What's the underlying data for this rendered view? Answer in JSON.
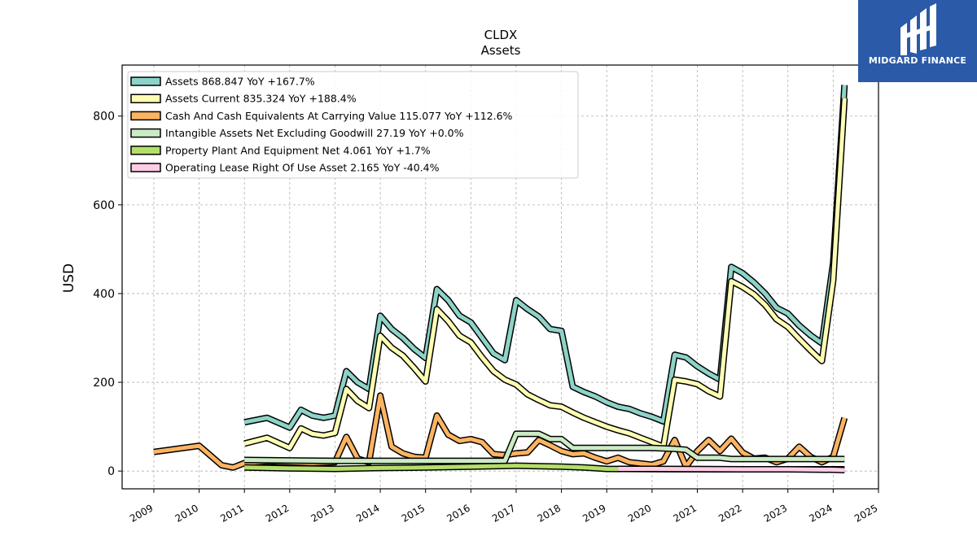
{
  "chart_data": {
    "type": "line",
    "title": "CLDX",
    "subtitle": "Assets",
    "ylabel": "USD",
    "xlabel": "",
    "xlim": [
      2008.3,
      2025.0
    ],
    "ylim": [
      -40,
      915
    ],
    "x_ticks": [
      "2009",
      "2010",
      "2011",
      "2012",
      "2013",
      "2014",
      "2015",
      "2016",
      "2017",
      "2018",
      "2019",
      "2020",
      "2021",
      "2022",
      "2023",
      "2024",
      "2025"
    ],
    "y_ticks": [
      0,
      200,
      400,
      600,
      800
    ],
    "grid": true,
    "legend_position": "top-left",
    "series": [
      {
        "name": "Assets",
        "legend": "Assets  868.847 YoY +167.7%",
        "color": "#8dd3c7",
        "points": [
          [
            2011.0,
            110
          ],
          [
            2011.5,
            120
          ],
          [
            2012.0,
            98
          ],
          [
            2012.25,
            138
          ],
          [
            2012.5,
            125
          ],
          [
            2012.75,
            120
          ],
          [
            2013.0,
            125
          ],
          [
            2013.25,
            225
          ],
          [
            2013.5,
            200
          ],
          [
            2013.75,
            185
          ],
          [
            2014.0,
            350
          ],
          [
            2014.25,
            320
          ],
          [
            2014.5,
            300
          ],
          [
            2014.75,
            275
          ],
          [
            2015.0,
            255
          ],
          [
            2015.25,
            410
          ],
          [
            2015.5,
            385
          ],
          [
            2015.75,
            350
          ],
          [
            2016.0,
            335
          ],
          [
            2016.25,
            300
          ],
          [
            2016.5,
            265
          ],
          [
            2016.75,
            250
          ],
          [
            2017.0,
            385
          ],
          [
            2017.25,
            365
          ],
          [
            2017.5,
            348
          ],
          [
            2017.75,
            320
          ],
          [
            2018.0,
            316
          ],
          [
            2018.25,
            190
          ],
          [
            2018.5,
            178
          ],
          [
            2018.75,
            168
          ],
          [
            2019.0,
            155
          ],
          [
            2019.25,
            145
          ],
          [
            2019.5,
            140
          ],
          [
            2019.75,
            130
          ],
          [
            2020.0,
            122
          ],
          [
            2020.25,
            112
          ],
          [
            2020.5,
            262
          ],
          [
            2020.75,
            256
          ],
          [
            2021.0,
            236
          ],
          [
            2021.25,
            220
          ],
          [
            2021.5,
            206
          ],
          [
            2021.75,
            460
          ],
          [
            2022.0,
            446
          ],
          [
            2022.25,
            425
          ],
          [
            2022.5,
            400
          ],
          [
            2022.75,
            368
          ],
          [
            2023.0,
            355
          ],
          [
            2023.25,
            328
          ],
          [
            2023.5,
            306
          ],
          [
            2023.75,
            288
          ],
          [
            2024.0,
            470
          ],
          [
            2024.25,
            870
          ]
        ]
      },
      {
        "name": "Assets Current",
        "legend": "Assets Current  835.324 YoY +188.4%",
        "color": "#ffffb3",
        "points": [
          [
            2011.0,
            62
          ],
          [
            2011.5,
            75
          ],
          [
            2012.0,
            52
          ],
          [
            2012.25,
            96
          ],
          [
            2012.5,
            84
          ],
          [
            2012.75,
            80
          ],
          [
            2013.0,
            86
          ],
          [
            2013.25,
            185
          ],
          [
            2013.5,
            158
          ],
          [
            2013.75,
            142
          ],
          [
            2014.0,
            305
          ],
          [
            2014.25,
            278
          ],
          [
            2014.5,
            260
          ],
          [
            2014.75,
            232
          ],
          [
            2015.0,
            202
          ],
          [
            2015.25,
            365
          ],
          [
            2015.5,
            338
          ],
          [
            2015.75,
            305
          ],
          [
            2016.0,
            290
          ],
          [
            2016.25,
            256
          ],
          [
            2016.5,
            225
          ],
          [
            2016.75,
            206
          ],
          [
            2017.0,
            195
          ],
          [
            2017.25,
            173
          ],
          [
            2017.5,
            160
          ],
          [
            2017.75,
            148
          ],
          [
            2018.0,
            145
          ],
          [
            2018.25,
            132
          ],
          [
            2018.5,
            120
          ],
          [
            2018.75,
            110
          ],
          [
            2019.0,
            100
          ],
          [
            2019.25,
            92
          ],
          [
            2019.5,
            85
          ],
          [
            2019.75,
            75
          ],
          [
            2020.0,
            65
          ],
          [
            2020.25,
            55
          ],
          [
            2020.5,
            206
          ],
          [
            2020.75,
            202
          ],
          [
            2021.0,
            196
          ],
          [
            2021.25,
            180
          ],
          [
            2021.5,
            168
          ],
          [
            2021.75,
            428
          ],
          [
            2022.0,
            415
          ],
          [
            2022.25,
            398
          ],
          [
            2022.5,
            374
          ],
          [
            2022.75,
            342
          ],
          [
            2023.0,
            325
          ],
          [
            2023.25,
            298
          ],
          [
            2023.5,
            272
          ],
          [
            2023.75,
            248
          ],
          [
            2024.0,
            430
          ],
          [
            2024.25,
            840
          ]
        ]
      },
      {
        "name": "Cash And Cash Equivalents At Carrying Value",
        "legend": "Cash And Cash Equivalents At Carrying Value  115.077 YoY +112.6%",
        "color": "#fdb462",
        "points": [
          [
            2009.0,
            43
          ],
          [
            2010.0,
            57
          ],
          [
            2010.5,
            13
          ],
          [
            2010.75,
            8
          ],
          [
            2011.0,
            18
          ],
          [
            2011.5,
            22
          ],
          [
            2012.0,
            20
          ],
          [
            2012.5,
            18
          ],
          [
            2013.0,
            20
          ],
          [
            2013.25,
            77
          ],
          [
            2013.5,
            28
          ],
          [
            2013.75,
            20
          ],
          [
            2014.0,
            170
          ],
          [
            2014.25,
            55
          ],
          [
            2014.5,
            40
          ],
          [
            2014.75,
            32
          ],
          [
            2015.0,
            30
          ],
          [
            2015.25,
            125
          ],
          [
            2015.5,
            82
          ],
          [
            2015.75,
            68
          ],
          [
            2016.0,
            72
          ],
          [
            2016.25,
            65
          ],
          [
            2016.5,
            38
          ],
          [
            2016.75,
            36
          ],
          [
            2017.0,
            40
          ],
          [
            2017.25,
            42
          ],
          [
            2017.5,
            70
          ],
          [
            2017.75,
            58
          ],
          [
            2018.0,
            45
          ],
          [
            2018.25,
            38
          ],
          [
            2018.5,
            40
          ],
          [
            2018.75,
            30
          ],
          [
            2019.0,
            22
          ],
          [
            2019.25,
            30
          ],
          [
            2019.5,
            20
          ],
          [
            2019.75,
            17
          ],
          [
            2020.0,
            14
          ],
          [
            2020.25,
            22
          ],
          [
            2020.5,
            70
          ],
          [
            2020.75,
            10
          ],
          [
            2021.0,
            45
          ],
          [
            2021.25,
            70
          ],
          [
            2021.5,
            45
          ],
          [
            2021.75,
            73
          ],
          [
            2022.0,
            42
          ],
          [
            2022.25,
            28
          ],
          [
            2022.5,
            30
          ],
          [
            2022.75,
            20
          ],
          [
            2023.0,
            28
          ],
          [
            2023.25,
            55
          ],
          [
            2023.5,
            32
          ],
          [
            2023.75,
            20
          ],
          [
            2024.0,
            32
          ],
          [
            2024.25,
            120
          ]
        ]
      },
      {
        "name": "Intangible Assets Net Excluding Goodwill",
        "legend": "Intangible Assets Net Excluding Goodwill  27.19 YoY +0.0%",
        "color": "#ccebc5",
        "points": [
          [
            2011.0,
            25
          ],
          [
            2012.0,
            24
          ],
          [
            2013.0,
            23
          ],
          [
            2014.0,
            23
          ],
          [
            2015.0,
            23
          ],
          [
            2016.0,
            23
          ],
          [
            2016.75,
            23
          ],
          [
            2017.0,
            84
          ],
          [
            2017.5,
            84
          ],
          [
            2017.75,
            72
          ],
          [
            2018.0,
            72
          ],
          [
            2018.25,
            52
          ],
          [
            2019.0,
            52
          ],
          [
            2020.0,
            52
          ],
          [
            2020.5,
            50
          ],
          [
            2020.75,
            48
          ],
          [
            2021.0,
            30
          ],
          [
            2021.5,
            30
          ],
          [
            2021.75,
            27
          ],
          [
            2022.0,
            27
          ],
          [
            2023.0,
            27
          ],
          [
            2024.0,
            27
          ],
          [
            2024.25,
            27
          ]
        ]
      },
      {
        "name": "Property Plant And Equipment Net",
        "legend": "Property Plant And Equipment Net  4.061 YoY +1.7%",
        "color": "#b3de69",
        "points": [
          [
            2011.0,
            8
          ],
          [
            2012.0,
            6
          ],
          [
            2013.0,
            5
          ],
          [
            2014.0,
            7
          ],
          [
            2015.0,
            8
          ],
          [
            2016.0,
            10
          ],
          [
            2017.0,
            12
          ],
          [
            2018.0,
            10
          ],
          [
            2018.5,
            8
          ],
          [
            2019.0,
            5
          ],
          [
            2020.0,
            4.5
          ],
          [
            2021.0,
            4.2
          ],
          [
            2022.0,
            4
          ],
          [
            2023.0,
            4
          ],
          [
            2024.0,
            4
          ],
          [
            2024.25,
            4.061
          ]
        ]
      },
      {
        "name": "Operating Lease Right Of Use Asset",
        "legend": "Operating Lease Right Of Use Asset  2.165 YoY -40.4%",
        "color": "#fccde5",
        "points": [
          [
            2019.25,
            5
          ],
          [
            2020.0,
            5
          ],
          [
            2021.0,
            4.5
          ],
          [
            2022.0,
            4
          ],
          [
            2023.0,
            4
          ],
          [
            2024.0,
            3
          ],
          [
            2024.25,
            2.165
          ]
        ]
      }
    ]
  },
  "logo": {
    "text": "MIDGARD FINANCE"
  }
}
